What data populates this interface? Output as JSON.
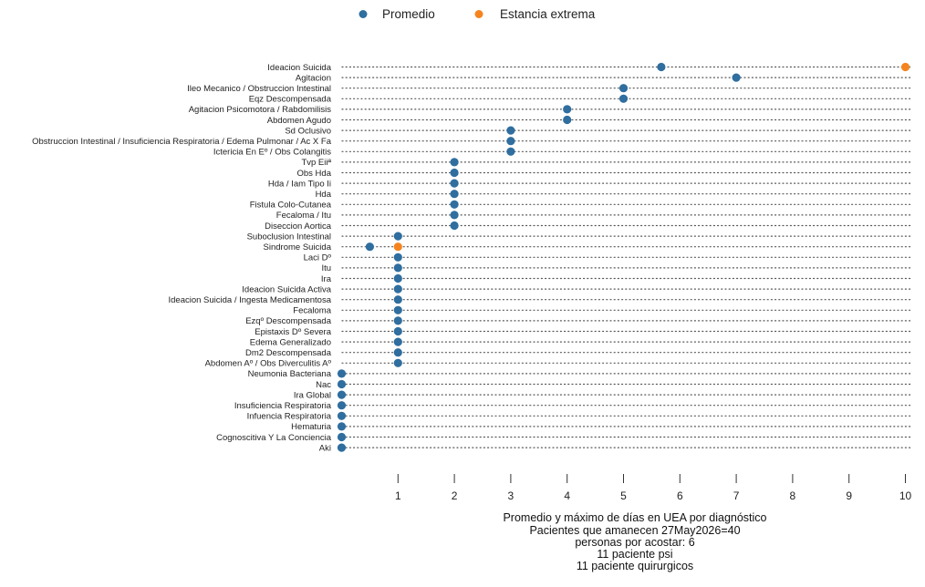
{
  "chart_data": {
    "type": "scatter",
    "orientation": "horizontal dot plot",
    "categories": [
      "Ideacion Suicida",
      "Agitacion",
      "Ileo Mecanico / Obstruccion Intestinal",
      "Eqz Descompensada",
      "Agitacion Psicomotora / Rabdomilisis",
      "Abdomen Agudo",
      "Sd Oclusivo",
      "Obstruccion Intestinal / Insuficiencia Respiratoria / Edema Pulmonar / Ac X Fa",
      "Ictericia En  Eº / Obs Colangitis",
      "Tvp Eiiª",
      "Obs Hda",
      "Hda / Iam Tipo Ii",
      "Hda",
      "Fistula Colo-Cutanea",
      "Fecaloma / Itu",
      "Diseccion Aortica",
      "Suboclusion Intestinal",
      "Sindrome Suicida",
      "Laci Dº",
      "Itu",
      "Ira",
      "Ideacion Suicida Activa",
      "Ideacion Suicida / Ingesta Medicamentosa",
      "Fecaloma",
      "Ezqº Descompensada",
      "Epistaxis Dº Severa",
      "Edema Generalizado",
      "Dm2 Descompensada",
      "Abdomen Aº / Obs Diverculitis Aº",
      "Neumonia Bacteriana",
      "Nac",
      "Ira Global",
      "Insuficiencia Respiratoria",
      "Infuencia Respiratoria",
      "Hematuria",
      "Cognoscitiva Y La Conciencia",
      "Aki"
    ],
    "series": [
      {
        "name": "Promedio",
        "color": "#2f6e9f",
        "values": [
          5.67,
          7,
          5,
          5,
          4,
          4,
          3,
          3,
          3,
          2,
          2,
          2,
          2,
          2,
          2,
          2,
          1,
          0.5,
          1,
          1,
          1,
          1,
          1,
          1,
          1,
          1,
          1,
          1,
          1,
          0,
          0,
          0,
          0,
          0,
          0,
          0,
          0
        ]
      },
      {
        "name": "Estancia extrema",
        "color": "#f5841f",
        "points": [
          {
            "category": "Ideacion Suicida",
            "value": 10
          },
          {
            "category": "Sindrome Suicida",
            "value": 1
          }
        ]
      }
    ],
    "xlim": [
      0,
      10
    ],
    "x_ticks": [
      "1",
      "2",
      "3",
      "4",
      "5",
      "6",
      "7",
      "8",
      "9",
      "10"
    ],
    "grid": "dotted horizontal lines per category",
    "legend_position": "top-center",
    "xlabel_lines": [
      "Promedio y máximo de días en UEA por diagnóstico",
      "Pacientes que amanecen  27May2026=40",
      "personas por acostar: 6",
      "11 paciente psi",
      "11 paciente quirurgicos"
    ]
  }
}
